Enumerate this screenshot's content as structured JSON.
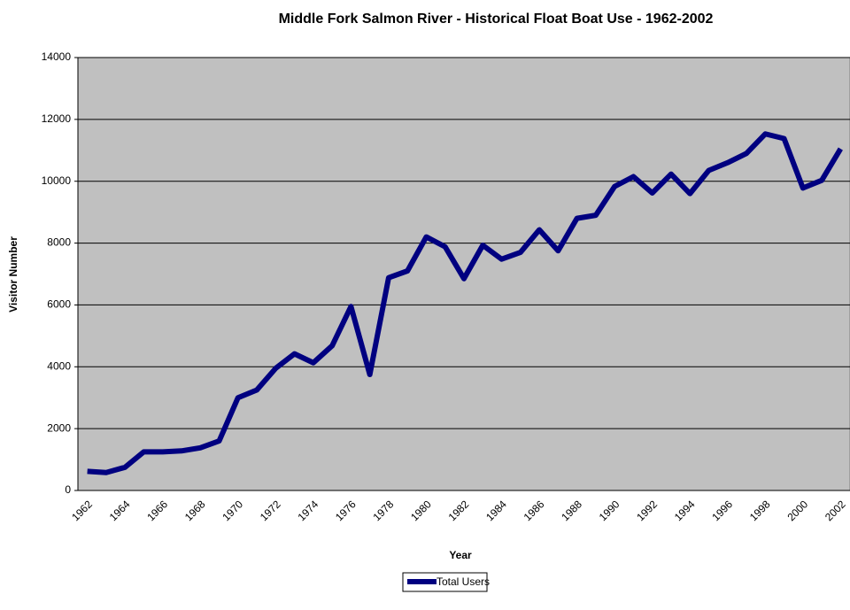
{
  "chart_data": {
    "type": "line",
    "title": "Middle Fork Salmon River - Historical Float Boat Use - 1962-2002",
    "x_label": "Year",
    "y_label": "Visitor Number",
    "categories": [
      "1962",
      null,
      "1964",
      null,
      "1966",
      null,
      "1968",
      null,
      "1970",
      null,
      "1972",
      null,
      "1974",
      null,
      "1976",
      null,
      "1978",
      null,
      "1980",
      null,
      "1982",
      null,
      "1984",
      null,
      "1986",
      null,
      "1988",
      null,
      "1990",
      null,
      "1992",
      null,
      "1994",
      null,
      "1996",
      null,
      "1998",
      null,
      "2000",
      null,
      "2002"
    ],
    "series": [
      {
        "name": "Total Users",
        "color": "#000080",
        "values": [
          620,
          580,
          750,
          1250,
          1250,
          1280,
          1380,
          1600,
          3000,
          3250,
          3950,
          4420,
          4130,
          4680,
          5950,
          3750,
          6880,
          7100,
          8200,
          7880,
          6850,
          7930,
          7480,
          7700,
          8430,
          7750,
          8800,
          8900,
          9830,
          10150,
          9620,
          10230,
          9600,
          10350,
          10600,
          10900,
          11530,
          11380,
          9780,
          10030,
          11050
        ]
      }
    ],
    "ylim": [
      0,
      14000
    ],
    "yticks": [
      0,
      2000,
      4000,
      6000,
      8000,
      10000,
      12000,
      14000
    ],
    "grid": true,
    "legend": "bottom"
  }
}
